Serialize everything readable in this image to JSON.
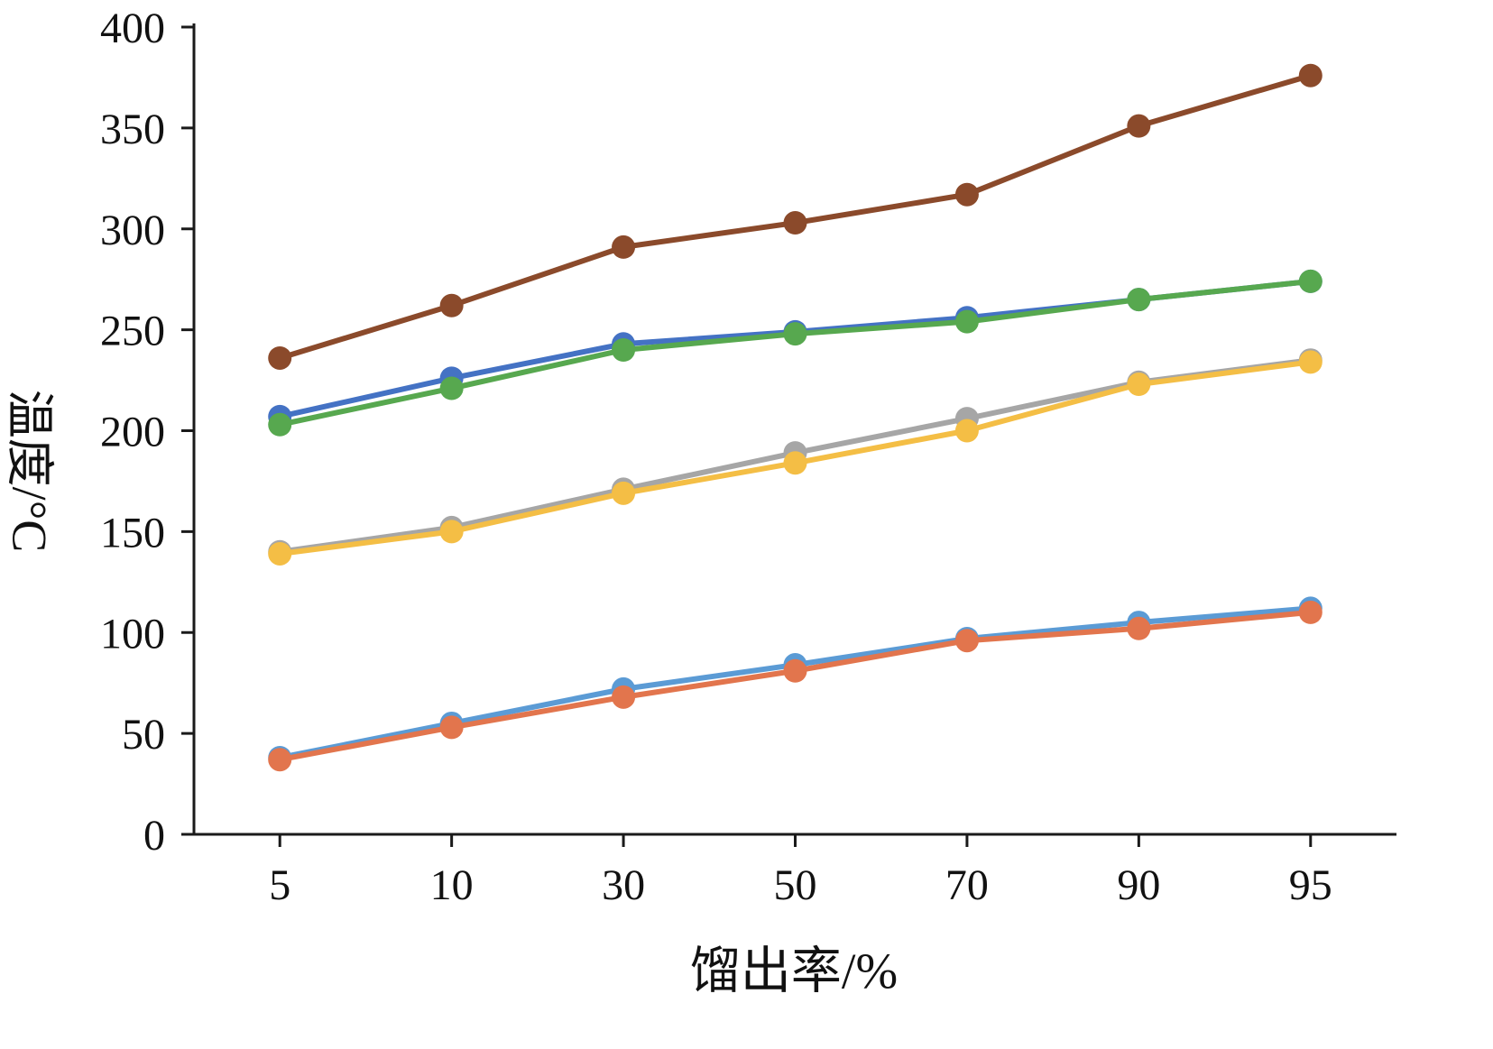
{
  "chart_data": {
    "type": "line",
    "title": "",
    "xlabel": "馏出率/%",
    "ylabel": "温度/°C",
    "categories": [
      5,
      10,
      30,
      50,
      70,
      90,
      95
    ],
    "yticks": [
      0,
      50,
      100,
      150,
      200,
      250,
      300,
      350,
      400
    ],
    "ylim": [
      0,
      400
    ],
    "grid": false,
    "legend": "none",
    "marker": "circle",
    "series": [
      {
        "name": "blue",
        "color": "#4472C4",
        "values": [
          207,
          226,
          243,
          249,
          256,
          265,
          274
        ]
      },
      {
        "name": "green",
        "color": "#57A84F",
        "values": [
          203,
          221,
          240,
          248,
          254,
          265,
          274
        ]
      },
      {
        "name": "gray",
        "color": "#A6A6A6",
        "values": [
          140,
          152,
          171,
          189,
          206,
          224,
          235
        ]
      },
      {
        "name": "yellow",
        "color": "#F4BE45",
        "values": [
          139,
          150,
          169,
          184,
          200,
          223,
          234
        ]
      },
      {
        "name": "light-blue",
        "color": "#5B9BD5",
        "values": [
          38,
          55,
          72,
          84,
          97,
          105,
          112
        ]
      },
      {
        "name": "orange",
        "color": "#E2754D",
        "values": [
          37,
          53,
          68,
          81,
          96,
          102,
          110
        ]
      },
      {
        "name": "brown",
        "color": "#8B4A2B",
        "values": [
          236,
          262,
          291,
          303,
          317,
          351,
          376
        ]
      }
    ]
  },
  "axis": {
    "color": "#1a1a1a"
  }
}
